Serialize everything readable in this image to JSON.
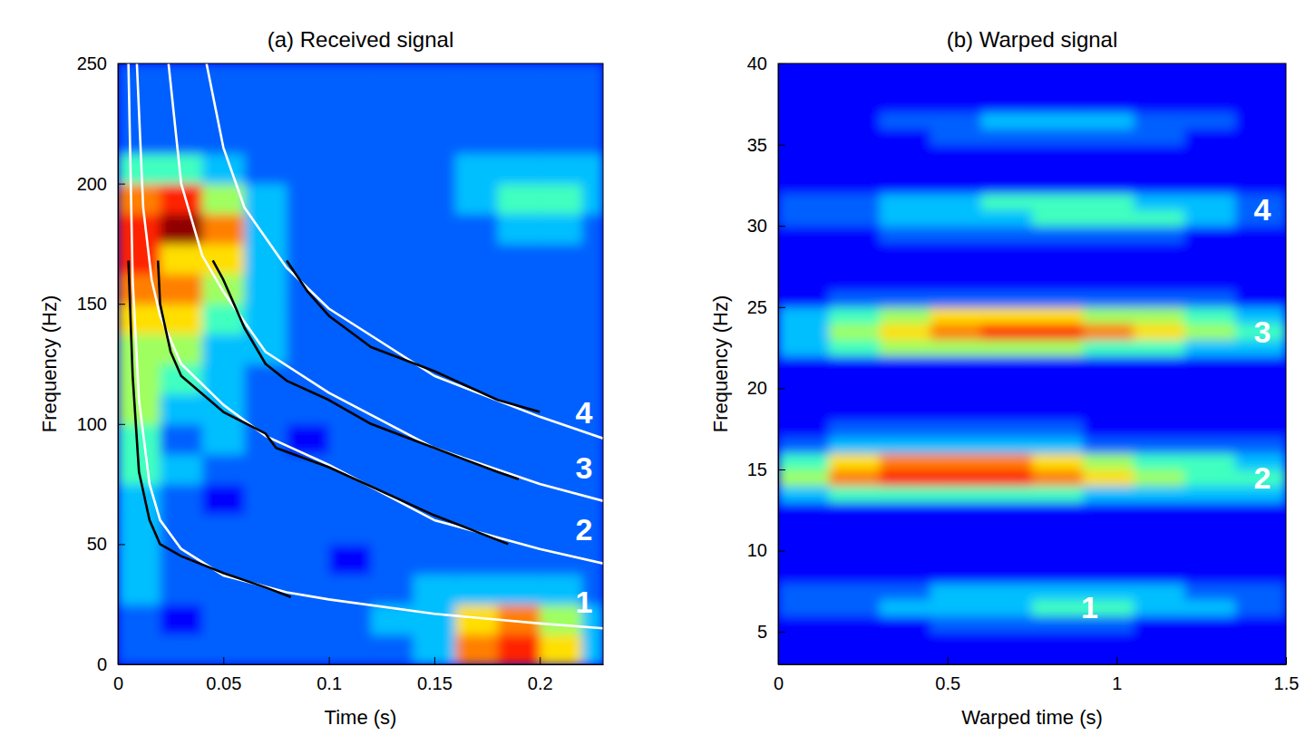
{
  "chart_data": [
    {
      "type": "heatmap",
      "title": "(a) Received signal",
      "x_label": "Time (s)",
      "y_label": "Frequency (Hz)",
      "xlim": [
        0,
        0.23
      ],
      "ylim": [
        0,
        250
      ],
      "xticks": [
        0,
        0.05,
        0.1,
        0.15,
        0.2
      ],
      "yticks": [
        0,
        50,
        100,
        150,
        200,
        250
      ],
      "zlim": [
        0,
        9
      ],
      "x_edges": [
        0,
        0.02,
        0.04,
        0.06,
        0.08,
        0.1,
        0.12,
        0.14,
        0.16,
        0.18,
        0.2,
        0.22,
        0.23
      ],
      "y_edges": [
        0,
        12.5,
        25,
        37.5,
        50,
        62.5,
        75,
        87.5,
        100,
        112.5,
        125,
        137.5,
        150,
        162.5,
        175,
        187.5,
        200,
        212.5,
        225,
        237.5,
        250
      ],
      "z": [
        [
          2,
          2,
          2,
          2,
          2,
          2,
          2,
          3,
          7,
          8,
          6,
          3
        ],
        [
          2,
          1,
          2,
          2,
          2,
          2,
          3,
          3,
          6,
          7,
          5,
          3
        ],
        [
          3,
          2,
          2,
          2,
          2,
          2,
          2,
          3,
          3,
          3,
          3,
          2
        ],
        [
          3,
          2,
          2,
          2,
          2,
          1,
          2,
          2,
          2,
          2,
          2,
          2
        ],
        [
          3,
          2,
          2,
          2,
          2,
          2,
          2,
          2,
          2,
          2,
          2,
          2
        ],
        [
          3,
          2,
          1,
          2,
          2,
          2,
          2,
          2,
          2,
          2,
          2,
          2
        ],
        [
          4,
          3,
          2,
          2,
          2,
          2,
          2,
          2,
          2,
          2,
          2,
          2
        ],
        [
          4,
          2,
          3,
          2,
          1,
          2,
          2,
          2,
          2,
          2,
          2,
          2
        ],
        [
          5,
          3,
          3,
          2,
          2,
          2,
          2,
          2,
          2,
          2,
          2,
          2
        ],
        [
          5,
          4,
          3,
          2,
          2,
          2,
          2,
          2,
          2,
          2,
          2,
          2
        ],
        [
          5,
          5,
          3,
          3,
          2,
          2,
          2,
          2,
          2,
          2,
          2,
          2
        ],
        [
          6,
          6,
          4,
          3,
          2,
          2,
          2,
          2,
          2,
          2,
          2,
          2
        ],
        [
          7,
          7,
          5,
          3,
          2,
          2,
          2,
          2,
          2,
          2,
          2,
          2
        ],
        [
          8,
          6,
          6,
          3,
          2,
          2,
          2,
          2,
          2,
          2,
          2,
          2
        ],
        [
          8,
          9,
          7,
          3,
          2,
          2,
          2,
          2,
          2,
          3,
          3,
          2
        ],
        [
          7,
          8,
          5,
          3,
          2,
          2,
          2,
          2,
          3,
          4,
          4,
          3
        ],
        [
          4,
          4,
          3,
          2,
          2,
          2,
          2,
          2,
          3,
          3,
          3,
          3
        ],
        [
          2,
          2,
          2,
          2,
          2,
          2,
          2,
          2,
          2,
          2,
          2,
          2
        ],
        [
          2,
          2,
          2,
          2,
          2,
          2,
          2,
          2,
          2,
          2,
          2,
          2
        ],
        [
          2,
          2,
          2,
          2,
          2,
          2,
          2,
          2,
          2,
          2,
          2,
          2
        ]
      ],
      "lines": [
        {
          "color": "#ffffff",
          "x": [
            0.005,
            0.007,
            0.01,
            0.015,
            0.02,
            0.03,
            0.05,
            0.08,
            0.1,
            0.15,
            0.2,
            0.23
          ],
          "y": [
            250,
            160,
            110,
            75,
            60,
            48,
            37,
            30,
            27,
            21,
            17,
            15
          ]
        },
        {
          "color": "#ffffff",
          "x": [
            0.009,
            0.012,
            0.016,
            0.02,
            0.03,
            0.05,
            0.07,
            0.1,
            0.15,
            0.2,
            0.23
          ],
          "y": [
            250,
            190,
            160,
            145,
            125,
            108,
            95,
            83,
            60,
            48,
            42
          ]
        },
        {
          "color": "#ffffff",
          "x": [
            0.024,
            0.03,
            0.04,
            0.05,
            0.07,
            0.1,
            0.15,
            0.2,
            0.23
          ],
          "y": [
            250,
            200,
            170,
            155,
            130,
            113,
            90,
            75,
            68
          ]
        },
        {
          "color": "#ffffff",
          "x": [
            0.042,
            0.05,
            0.06,
            0.08,
            0.1,
            0.15,
            0.2,
            0.23
          ],
          "y": [
            250,
            215,
            190,
            165,
            148,
            120,
            103,
            94
          ]
        },
        {
          "color": "#000000",
          "x": [
            0.005,
            0.007,
            0.01,
            0.015,
            0.02,
            0.03,
            0.05,
            0.07,
            0.082
          ],
          "y": [
            168,
            120,
            80,
            60,
            50,
            45,
            38,
            32,
            28
          ]
        },
        {
          "color": "#000000",
          "x": [
            0.019,
            0.02,
            0.025,
            0.03,
            0.05,
            0.07,
            0.075,
            0.1,
            0.15,
            0.185
          ],
          "y": [
            168,
            150,
            130,
            120,
            105,
            96,
            90,
            82,
            62,
            50
          ]
        },
        {
          "color": "#000000",
          "x": [
            0.045,
            0.05,
            0.06,
            0.07,
            0.08,
            0.1,
            0.12,
            0.15,
            0.18,
            0.19
          ],
          "y": [
            168,
            160,
            140,
            125,
            118,
            110,
            100,
            90,
            80,
            77
          ]
        },
        {
          "color": "#000000",
          "x": [
            0.08,
            0.09,
            0.1,
            0.12,
            0.15,
            0.18,
            0.2
          ],
          "y": [
            168,
            155,
            145,
            132,
            122,
            110,
            105
          ]
        }
      ],
      "annotations": [
        {
          "text": "4",
          "x": 0.221,
          "y": 105
        },
        {
          "text": "3",
          "x": 0.221,
          "y": 82
        },
        {
          "text": "2",
          "x": 0.221,
          "y": 56
        },
        {
          "text": "1",
          "x": 0.221,
          "y": 26
        }
      ]
    },
    {
      "type": "heatmap",
      "title": "(b) Warped signal",
      "x_label": "Warped time (s)",
      "y_label": "Frequency (Hz)",
      "xlim": [
        0,
        1.5
      ],
      "ylim": [
        3,
        40
      ],
      "xticks": [
        0,
        0.5,
        1,
        1.5
      ],
      "yticks": [
        5,
        10,
        15,
        20,
        25,
        30,
        35,
        40
      ],
      "zlim": [
        0,
        9
      ],
      "x_edges": [
        0,
        0.15,
        0.3,
        0.45,
        0.6,
        0.75,
        0.9,
        1.05,
        1.2,
        1.35,
        1.5
      ],
      "y_edges": [
        3,
        4,
        5,
        6,
        7,
        8,
        9,
        10,
        11,
        12,
        13,
        14,
        15,
        16,
        17,
        18,
        19,
        20,
        21,
        22,
        23,
        24,
        25,
        26,
        27,
        28,
        29,
        30,
        31,
        32,
        33,
        34,
        35,
        36,
        37,
        38,
        39,
        40
      ],
      "z": [
        [
          1,
          1,
          1,
          1,
          1,
          1,
          1,
          1,
          1,
          1
        ],
        [
          1,
          1,
          1,
          1,
          1,
          1,
          1,
          1,
          1,
          1
        ],
        [
          1,
          1,
          1,
          2,
          2,
          2,
          2,
          1,
          1,
          1
        ],
        [
          2,
          2,
          3,
          3,
          3,
          4,
          4,
          3,
          3,
          2
        ],
        [
          2,
          2,
          2,
          3,
          3,
          3,
          3,
          3,
          2,
          2
        ],
        [
          1,
          1,
          1,
          1,
          1,
          1,
          1,
          1,
          1,
          1
        ],
        [
          1,
          1,
          1,
          1,
          1,
          1,
          1,
          1,
          1,
          1
        ],
        [
          1,
          1,
          1,
          1,
          1,
          1,
          1,
          1,
          1,
          1
        ],
        [
          1,
          1,
          1,
          1,
          1,
          1,
          1,
          1,
          1,
          1
        ],
        [
          1,
          1,
          1,
          1,
          1,
          1,
          1,
          1,
          1,
          1
        ],
        [
          3,
          4,
          4,
          4,
          4,
          4,
          3,
          3,
          3,
          3
        ],
        [
          5,
          7,
          8,
          8,
          8,
          7,
          6,
          5,
          4,
          4
        ],
        [
          4,
          6,
          7,
          7,
          7,
          6,
          5,
          4,
          4,
          3
        ],
        [
          2,
          3,
          3,
          3,
          3,
          3,
          2,
          2,
          2,
          2
        ],
        [
          1,
          2,
          2,
          2,
          2,
          2,
          1,
          1,
          1,
          1
        ],
        [
          1,
          1,
          1,
          1,
          1,
          1,
          1,
          1,
          1,
          1
        ],
        [
          1,
          1,
          1,
          1,
          1,
          1,
          1,
          1,
          1,
          1
        ],
        [
          1,
          1,
          1,
          1,
          1,
          1,
          1,
          1,
          1,
          1
        ],
        [
          1,
          1,
          1,
          1,
          1,
          1,
          1,
          1,
          1,
          1
        ],
        [
          3,
          4,
          5,
          5,
          5,
          5,
          4,
          4,
          3,
          3
        ],
        [
          3,
          5,
          6,
          7,
          8,
          8,
          7,
          6,
          5,
          4
        ],
        [
          3,
          4,
          5,
          6,
          6,
          6,
          5,
          5,
          4,
          3
        ],
        [
          1,
          2,
          2,
          2,
          2,
          2,
          2,
          2,
          2,
          1
        ],
        [
          1,
          1,
          1,
          1,
          1,
          1,
          1,
          1,
          1,
          1
        ],
        [
          1,
          1,
          1,
          1,
          1,
          1,
          1,
          1,
          1,
          1
        ],
        [
          1,
          1,
          1,
          1,
          1,
          1,
          1,
          1,
          1,
          1
        ],
        [
          1,
          1,
          2,
          2,
          2,
          2,
          2,
          2,
          1,
          1
        ],
        [
          2,
          2,
          3,
          3,
          3,
          4,
          4,
          4,
          3,
          2
        ],
        [
          2,
          2,
          3,
          3,
          4,
          4,
          4,
          3,
          3,
          2
        ],
        [
          1,
          1,
          1,
          1,
          1,
          1,
          1,
          1,
          1,
          1
        ],
        [
          1,
          1,
          1,
          1,
          1,
          1,
          1,
          1,
          1,
          1
        ],
        [
          1,
          1,
          1,
          1,
          1,
          1,
          1,
          1,
          1,
          1
        ],
        [
          1,
          1,
          1,
          2,
          2,
          2,
          2,
          2,
          1,
          1
        ],
        [
          1,
          1,
          2,
          2,
          3,
          3,
          3,
          2,
          2,
          1
        ],
        [
          1,
          1,
          1,
          1,
          1,
          1,
          1,
          1,
          1,
          1
        ],
        [
          1,
          1,
          1,
          1,
          1,
          1,
          1,
          1,
          1,
          1
        ],
        [
          1,
          1,
          1,
          1,
          1,
          1,
          1,
          1,
          1,
          1
        ]
      ],
      "annotations": [
        {
          "text": "4",
          "x": 1.43,
          "y": 31
        },
        {
          "text": "3",
          "x": 1.43,
          "y": 23.5
        },
        {
          "text": "2",
          "x": 1.43,
          "y": 14.5
        },
        {
          "text": "1",
          "x": 0.92,
          "y": 6.5
        }
      ]
    }
  ]
}
